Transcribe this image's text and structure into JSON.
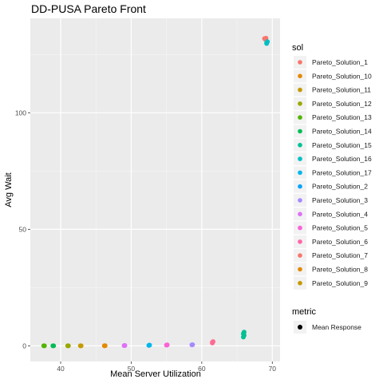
{
  "chart_data": {
    "type": "scatter",
    "title": "DD-PUSA Pareto Front",
    "xlabel": "Mean Server Utilization",
    "ylabel": "Avg Wait",
    "xlim": [
      35.7,
      71.1
    ],
    "ylim": [
      -6.7,
      140.5
    ],
    "x_ticks": [
      40,
      50,
      60,
      70
    ],
    "y_ticks": [
      0,
      50,
      100
    ],
    "grid": true,
    "legend_position": "right",
    "legend": {
      "title": "sol",
      "entries": [
        "Pareto_Solution_1",
        "Pareto_Solution_10",
        "Pareto_Solution_11",
        "Pareto_Solution_12",
        "Pareto_Solution_13",
        "Pareto_Solution_14",
        "Pareto_Solution_15",
        "Pareto_Solution_16",
        "Pareto_Solution_17",
        "Pareto_Solution_2",
        "Pareto_Solution_3",
        "Pareto_Solution_4",
        "Pareto_Solution_5",
        "Pareto_Solution_6",
        "Pareto_Solution_7",
        "Pareto_Solution_8",
        "Pareto_Solution_9"
      ]
    },
    "shape_legend": {
      "title": "metric",
      "entries": [
        "Mean Response"
      ]
    },
    "colors": [
      "#F8766D",
      "#E38900",
      "#C49A00",
      "#99A800",
      "#53B400",
      "#00BC56",
      "#00C094",
      "#00BFC4",
      "#00B6EB",
      "#06A4FF",
      "#A58AFF",
      "#DF70F8",
      "#FB61D7",
      "#FF66A8",
      "#F8766D",
      "#E38900",
      "#C49A00"
    ],
    "series": [
      {
        "name": "Pareto_Solution_1",
        "color": "#F8766D",
        "points": [
          [
            69.0,
            131.5
          ],
          [
            69.1,
            132.0
          ],
          [
            68.9,
            131.8
          ]
        ]
      },
      {
        "name": "Pareto_Solution_17",
        "color": "#00BFC4",
        "points": [
          [
            69.2,
            130.0
          ],
          [
            69.3,
            130.5
          ],
          [
            69.2,
            129.7
          ]
        ]
      },
      {
        "name": "Pareto_Solution_16",
        "color": "#00C094",
        "points": [
          [
            65.9,
            5.2
          ],
          [
            66.0,
            4.5
          ],
          [
            66.0,
            5.9
          ],
          [
            65.9,
            3.8
          ]
        ]
      },
      {
        "name": "Pareto_Solution_9",
        "color": "#FF6C91",
        "points": [
          [
            61.5,
            1.5
          ],
          [
            61.6,
            1.8
          ],
          [
            61.5,
            1.2
          ]
        ]
      },
      {
        "name": "Pareto_Solution_5",
        "color": "#A58AFF",
        "points": [
          [
            58.6,
            0.4
          ],
          [
            58.7,
            0.5
          ]
        ]
      },
      {
        "name": "Pareto_Solution_7",
        "color": "#FB61D7",
        "points": [
          [
            55.0,
            0.3
          ],
          [
            55.1,
            0.4
          ]
        ]
      },
      {
        "name": "Pareto_Solution_3",
        "color": "#00B6EB",
        "points": [
          [
            52.5,
            0.2
          ],
          [
            52.6,
            0.3
          ]
        ]
      },
      {
        "name": "Pareto_Solution_6",
        "color": "#DF70F8",
        "points": [
          [
            49.0,
            0.1
          ],
          [
            49.1,
            0.15
          ]
        ]
      },
      {
        "name": "Pareto_Solution_10",
        "color": "#E38900",
        "points": [
          [
            46.2,
            0.0
          ],
          [
            46.3,
            0.05
          ]
        ]
      },
      {
        "name": "Pareto_Solution_12",
        "color": "#C49A00",
        "points": [
          [
            42.8,
            0.0
          ],
          [
            42.9,
            0.0
          ]
        ]
      },
      {
        "name": "Pareto_Solution_13",
        "color": "#99A800",
        "points": [
          [
            41.0,
            0.0
          ],
          [
            41.1,
            0.0
          ]
        ]
      },
      {
        "name": "Pareto_Solution_15",
        "color": "#00BC56",
        "points": [
          [
            38.9,
            0.0
          ],
          [
            39.0,
            0.0
          ]
        ]
      },
      {
        "name": "Pareto_Solution_14",
        "color": "#53B400",
        "points": [
          [
            37.6,
            0.0
          ],
          [
            37.7,
            0.0
          ]
        ]
      }
    ]
  }
}
